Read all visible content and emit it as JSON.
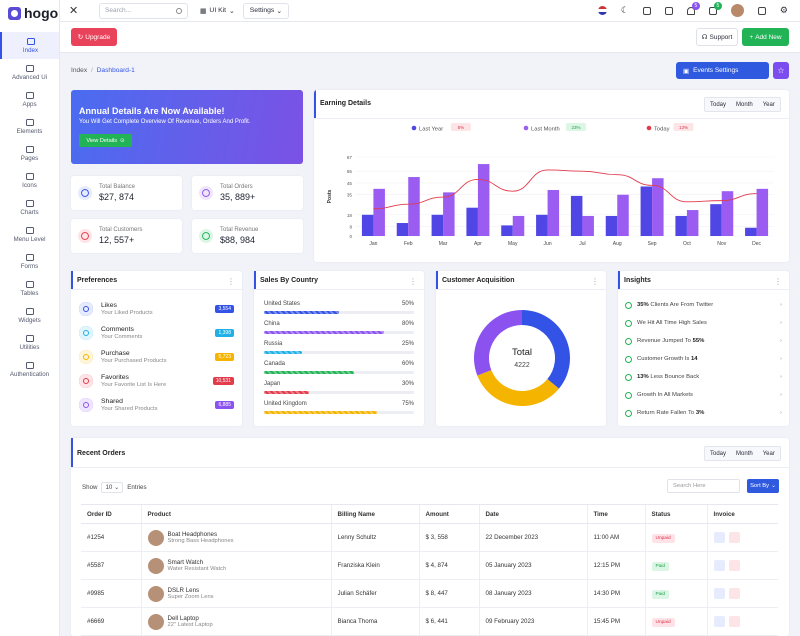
{
  "brand": {
    "name": "hogo",
    "accent": "#3353e6"
  },
  "sidebar": {
    "items": [
      {
        "label": "Index",
        "icon": "monitor-icon",
        "active": true
      },
      {
        "label": "Advanced Ui",
        "icon": "hourglass-icon"
      },
      {
        "label": "Apps",
        "icon": "globe-icon"
      },
      {
        "label": "Elements",
        "icon": "grid-icon"
      },
      {
        "label": "Pages",
        "icon": "page-icon"
      },
      {
        "label": "Icons",
        "icon": "icons-icon"
      },
      {
        "label": "Charts",
        "icon": "chart-icon"
      },
      {
        "label": "Menu Level",
        "icon": "menu-icon"
      },
      {
        "label": "Forms",
        "icon": "forms-icon"
      },
      {
        "label": "Tables",
        "icon": "table-icon"
      },
      {
        "label": "Widgets",
        "icon": "widgets-icon"
      },
      {
        "label": "Utilities",
        "icon": "utilities-icon"
      },
      {
        "label": "Authentication",
        "icon": "warning-icon"
      }
    ]
  },
  "topbar": {
    "search_placeholder": "Search...",
    "uikit": "UI Kit",
    "settings": "Settings",
    "notif_badge": "5",
    "cart_badge": "5"
  },
  "subbar": {
    "upgrade": "Upgrade",
    "support": "Support",
    "add_new": "Add New"
  },
  "breadcrumb": {
    "root": "Index",
    "current": "Dashboard-1"
  },
  "events_button": "Events Settings",
  "banner": {
    "title": "Annual Details Are Now Available!",
    "text": "You Will Get Complete Overview Of Revenue, Orders And Profit.",
    "button": "View Details"
  },
  "stats": [
    {
      "label": "Total Balance",
      "value": "$27, 874"
    },
    {
      "label": "Total Orders",
      "value": "35, 889+"
    },
    {
      "label": "Total Customers",
      "value": "12, 557+"
    },
    {
      "label": "Total Revenue",
      "value": "$88, 984"
    }
  ],
  "earning": {
    "title": "Earning Details",
    "tabs": [
      "Today",
      "Month",
      "Year"
    ]
  },
  "chart_data": {
    "type": "bar",
    "title": "Earning Details",
    "ylabel": "Posts",
    "ylim": [
      0,
      67
    ],
    "yticks": [
      0,
      8,
      18,
      35,
      45,
      55,
      67
    ],
    "categories": [
      "Jan",
      "Feb",
      "Mar",
      "Apr",
      "May",
      "Jun",
      "Jul",
      "Aug",
      "Sep",
      "Oct",
      "Nov",
      "Dec"
    ],
    "series": [
      {
        "name": "Last Year",
        "change": "5%",
        "trend": "down",
        "color": "#4f46e5",
        "values": [
          18,
          11,
          18,
          24,
          9,
          18,
          34,
          17,
          42,
          17,
          27,
          7
        ]
      },
      {
        "name": "Last Month",
        "change": "23%",
        "trend": "up",
        "color": "#9b5cf1",
        "values": [
          40,
          50,
          37,
          61,
          17,
          39,
          17,
          35,
          49,
          22,
          38,
          40
        ]
      },
      {
        "name": "Today",
        "change": "13%",
        "trend": "down",
        "color": "#e23b4b",
        "type": "line",
        "values": [
          23,
          27,
          33,
          48,
          38,
          56,
          55,
          52,
          43,
          29,
          30,
          36
        ]
      }
    ]
  },
  "preferences": {
    "title": "Preferences",
    "items": [
      {
        "title": "Likes",
        "sub": "Your Liked Products",
        "count": "3,554",
        "color": "#3353e6",
        "bg": "#e6ebfd"
      },
      {
        "title": "Comments",
        "sub": "Your Comments",
        "count": "1,398",
        "color": "#1fb1e6",
        "bg": "#e2f5fc"
      },
      {
        "title": "Purchase",
        "sub": "Your Purchased Products",
        "count": "5,723",
        "color": "#f5b400",
        "bg": "#fef4d9"
      },
      {
        "title": "Favorites",
        "sub": "Your Favorite List Is Here",
        "count": "10,531",
        "color": "#e23b4b",
        "bg": "#fde4e7"
      },
      {
        "title": "Shared",
        "sub": "Your Shared Products",
        "count": "6,885",
        "color": "#8c52f0",
        "bg": "#efe6fd"
      }
    ]
  },
  "countries": {
    "title": "Sales By Country",
    "items": [
      {
        "name": "United States",
        "pct": "50%",
        "value": 50,
        "color": "#3353e6"
      },
      {
        "name": "China",
        "pct": "80%",
        "value": 80,
        "color": "#8c52f0"
      },
      {
        "name": "Russia",
        "pct": "25%",
        "value": 25,
        "color": "#1fb1e6"
      },
      {
        "name": "Canada",
        "pct": "60%",
        "value": 60,
        "color": "#21b356"
      },
      {
        "name": "Japan",
        "pct": "30%",
        "value": 30,
        "color": "#e23b4b"
      },
      {
        "name": "United Kingdom",
        "pct": "75%",
        "value": 75,
        "color": "#f5b400"
      }
    ]
  },
  "acquisition": {
    "title": "Customer Acquisition",
    "total_label": "Total",
    "total_value": "4222",
    "segments": [
      {
        "name": "Blue",
        "value": 0.36,
        "color": "#3353e6"
      },
      {
        "name": "Yellow",
        "value": 0.33,
        "color": "#f5b400"
      },
      {
        "name": "Purple",
        "value": 0.31,
        "color": "#8c52f0"
      }
    ]
  },
  "insights": {
    "title": "Insights",
    "items": [
      {
        "bold": "35%",
        "text": " Clients Are From Twitter"
      },
      {
        "bold": "",
        "text": "We Hit All Time High Sales"
      },
      {
        "bold": "",
        "text": "Revenue Jumped To ",
        "bold_end": "55%"
      },
      {
        "bold": "",
        "text": "Customer Growth Is ",
        "bold_end": "14"
      },
      {
        "bold": "13%",
        "text": " Less Bounce Back"
      },
      {
        "bold": "",
        "text": "Growth In All Markets"
      },
      {
        "bold": "",
        "text": "Return Rate Fallen To ",
        "bold_end": "3%"
      }
    ]
  },
  "orders": {
    "title": "Recent Orders",
    "tabs": [
      "Today",
      "Month",
      "Year"
    ],
    "show": "Show",
    "entries_value": "10",
    "entries": "Entries",
    "search_placeholder": "Search Here",
    "sort": "Sort By",
    "columns": [
      "Order ID",
      "Product",
      "Billing Name",
      "Amount",
      "Date",
      "Time",
      "Status",
      "Invoice"
    ],
    "rows": [
      {
        "id": "#1254",
        "product": "Boat Headphones",
        "sub": "Strong Bass Headphones",
        "name": "Lenny Schultz",
        "amount": "$ 3, 558",
        "date": "22 December 2023",
        "time": "11:00 AM",
        "status": "Unpaid"
      },
      {
        "id": "#5587",
        "product": "Smart Watch",
        "sub": "Water Resistant Watch",
        "name": "Franziska Klein",
        "amount": "$ 4, 874",
        "date": "05 January 2023",
        "time": "12:15 PM",
        "status": "Paid"
      },
      {
        "id": "#9985",
        "product": "DSLR Lens",
        "sub": "Super Zoom Lens",
        "name": "Julian Schäfer",
        "amount": "$ 8, 447",
        "date": "08 January 2023",
        "time": "14:30 PM",
        "status": "Paid"
      },
      {
        "id": "#6669",
        "product": "Dell Laptop",
        "sub": "22\" Latest Laptop",
        "name": "Bianca Thoma",
        "amount": "$ 6, 441",
        "date": "09 February 2023",
        "time": "15:45 PM",
        "status": "Unpaid"
      }
    ]
  }
}
